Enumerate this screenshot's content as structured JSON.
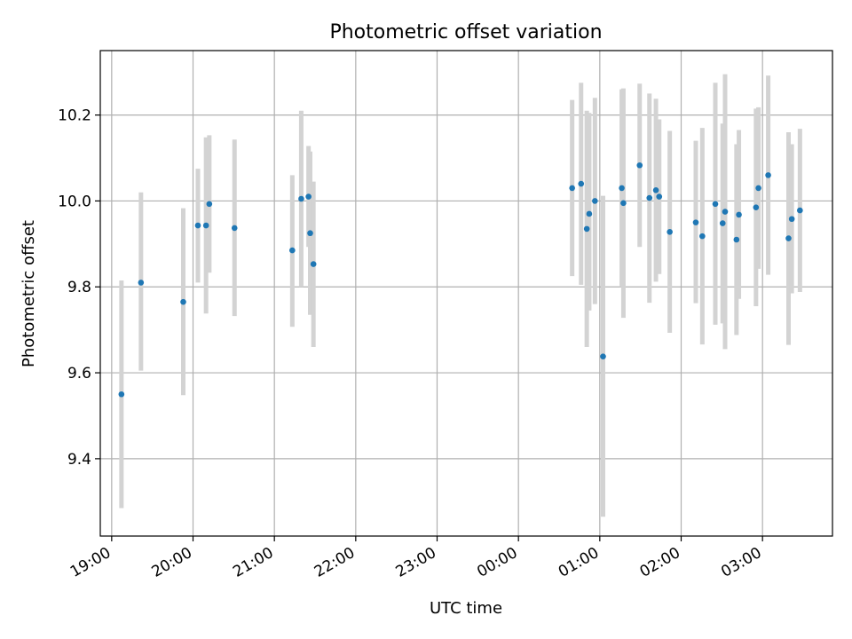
{
  "chart_data": {
    "type": "scatter",
    "title": "Photometric offset variation",
    "xlabel": "UTC time",
    "ylabel": "Photometric offset",
    "grid": true,
    "xlim_hours": [
      18.86,
      27.86
    ],
    "ylim": [
      9.22,
      10.35
    ],
    "x_ticks": [
      {
        "hour": 19,
        "label": "19:00"
      },
      {
        "hour": 20,
        "label": "20:00"
      },
      {
        "hour": 21,
        "label": "21:00"
      },
      {
        "hour": 22,
        "label": "22:00"
      },
      {
        "hour": 23,
        "label": "23:00"
      },
      {
        "hour": 24,
        "label": "00:00"
      },
      {
        "hour": 25,
        "label": "01:00"
      },
      {
        "hour": 26,
        "label": "02:00"
      },
      {
        "hour": 27,
        "label": "03:00"
      }
    ],
    "y_ticks": [
      {
        "value": 9.4,
        "label": "9.4"
      },
      {
        "value": 9.6,
        "label": "9.6"
      },
      {
        "value": 9.8,
        "label": "9.8"
      },
      {
        "value": 10.0,
        "label": "10.0"
      },
      {
        "value": 10.2,
        "label": "10.2"
      }
    ],
    "colors": {
      "points": "#1f77b4",
      "errorbars": "#d3d3d3",
      "grid": "#b0b0b0"
    },
    "series": [
      {
        "points": [
          {
            "t": "19:07",
            "hour": 19.12,
            "y": 9.55,
            "lo": 9.285,
            "hi": 9.815
          },
          {
            "t": "19:22",
            "hour": 19.36,
            "y": 9.81,
            "lo": 9.605,
            "hi": 10.02
          },
          {
            "t": "19:53",
            "hour": 19.88,
            "y": 9.765,
            "lo": 9.548,
            "hi": 9.983
          },
          {
            "t": "20:04",
            "hour": 20.06,
            "y": 9.943,
            "lo": 9.81,
            "hi": 10.075
          },
          {
            "t": "20:10",
            "hour": 20.16,
            "y": 9.943,
            "lo": 9.738,
            "hi": 10.148
          },
          {
            "t": "20:12",
            "hour": 20.2,
            "y": 9.993,
            "lo": 9.833,
            "hi": 10.153
          },
          {
            "t": "20:31",
            "hour": 20.51,
            "y": 9.937,
            "lo": 9.732,
            "hi": 10.143
          },
          {
            "t": "21:13",
            "hour": 21.22,
            "y": 9.885,
            "lo": 9.707,
            "hi": 10.06
          },
          {
            "t": "21:20",
            "hour": 21.33,
            "y": 10.005,
            "lo": 9.8,
            "hi": 10.21
          },
          {
            "t": "21:25",
            "hour": 21.42,
            "y": 10.01,
            "lo": 9.893,
            "hi": 10.128
          },
          {
            "t": "21:26",
            "hour": 21.44,
            "y": 9.925,
            "lo": 9.735,
            "hi": 10.115
          },
          {
            "t": "21:29",
            "hour": 21.48,
            "y": 9.853,
            "lo": 9.66,
            "hi": 10.045
          },
          {
            "t": "00:39",
            "hour": 24.66,
            "y": 10.03,
            "lo": 9.825,
            "hi": 10.235
          },
          {
            "t": "00:46",
            "hour": 24.77,
            "y": 10.04,
            "lo": 9.805,
            "hi": 10.275
          },
          {
            "t": "00:50",
            "hour": 24.84,
            "y": 9.935,
            "lo": 9.66,
            "hi": 10.21
          },
          {
            "t": "00:52",
            "hour": 24.87,
            "y": 9.97,
            "lo": 9.745,
            "hi": 10.205
          },
          {
            "t": "00:56",
            "hour": 24.94,
            "y": 10.0,
            "lo": 9.76,
            "hi": 10.24
          },
          {
            "t": "01:02",
            "hour": 25.04,
            "y": 9.638,
            "lo": 9.265,
            "hi": 10.012
          },
          {
            "t": "01:16",
            "hour": 25.27,
            "y": 10.03,
            "lo": 9.8,
            "hi": 10.26
          },
          {
            "t": "01:17",
            "hour": 25.29,
            "y": 9.995,
            "lo": 9.728,
            "hi": 10.262
          },
          {
            "t": "01:29",
            "hour": 25.49,
            "y": 10.083,
            "lo": 9.893,
            "hi": 10.273
          },
          {
            "t": "01:36",
            "hour": 25.61,
            "y": 10.007,
            "lo": 9.763,
            "hi": 10.25
          },
          {
            "t": "01:41",
            "hour": 25.69,
            "y": 10.025,
            "lo": 9.812,
            "hi": 10.238
          },
          {
            "t": "01:44",
            "hour": 25.73,
            "y": 10.01,
            "lo": 9.83,
            "hi": 10.19
          },
          {
            "t": "01:51",
            "hour": 25.86,
            "y": 9.928,
            "lo": 9.693,
            "hi": 10.163
          },
          {
            "t": "02:11",
            "hour": 26.18,
            "y": 9.95,
            "lo": 9.762,
            "hi": 10.14
          },
          {
            "t": "02:15",
            "hour": 26.26,
            "y": 9.918,
            "lo": 9.666,
            "hi": 10.17
          },
          {
            "t": "02:25",
            "hour": 26.42,
            "y": 9.993,
            "lo": 9.712,
            "hi": 10.275
          },
          {
            "t": "02:30",
            "hour": 26.51,
            "y": 9.948,
            "lo": 9.715,
            "hi": 10.18
          },
          {
            "t": "02:32",
            "hour": 26.54,
            "y": 9.975,
            "lo": 9.655,
            "hi": 10.295
          },
          {
            "t": "02:40",
            "hour": 26.68,
            "y": 9.91,
            "lo": 9.688,
            "hi": 10.132
          },
          {
            "t": "02:42",
            "hour": 26.71,
            "y": 9.968,
            "lo": 9.772,
            "hi": 10.165
          },
          {
            "t": "02:55",
            "hour": 26.92,
            "y": 9.985,
            "lo": 9.755,
            "hi": 10.215
          },
          {
            "t": "02:57",
            "hour": 26.95,
            "y": 10.03,
            "lo": 9.842,
            "hi": 10.218
          },
          {
            "t": "03:04",
            "hour": 27.07,
            "y": 10.06,
            "lo": 9.828,
            "hi": 10.292
          },
          {
            "t": "03:19",
            "hour": 27.32,
            "y": 9.913,
            "lo": 9.665,
            "hi": 10.16
          },
          {
            "t": "03:21",
            "hour": 27.36,
            "y": 9.958,
            "lo": 9.785,
            "hi": 10.132
          },
          {
            "t": "03:28",
            "hour": 27.46,
            "y": 9.978,
            "lo": 9.788,
            "hi": 10.168
          }
        ]
      }
    ]
  }
}
